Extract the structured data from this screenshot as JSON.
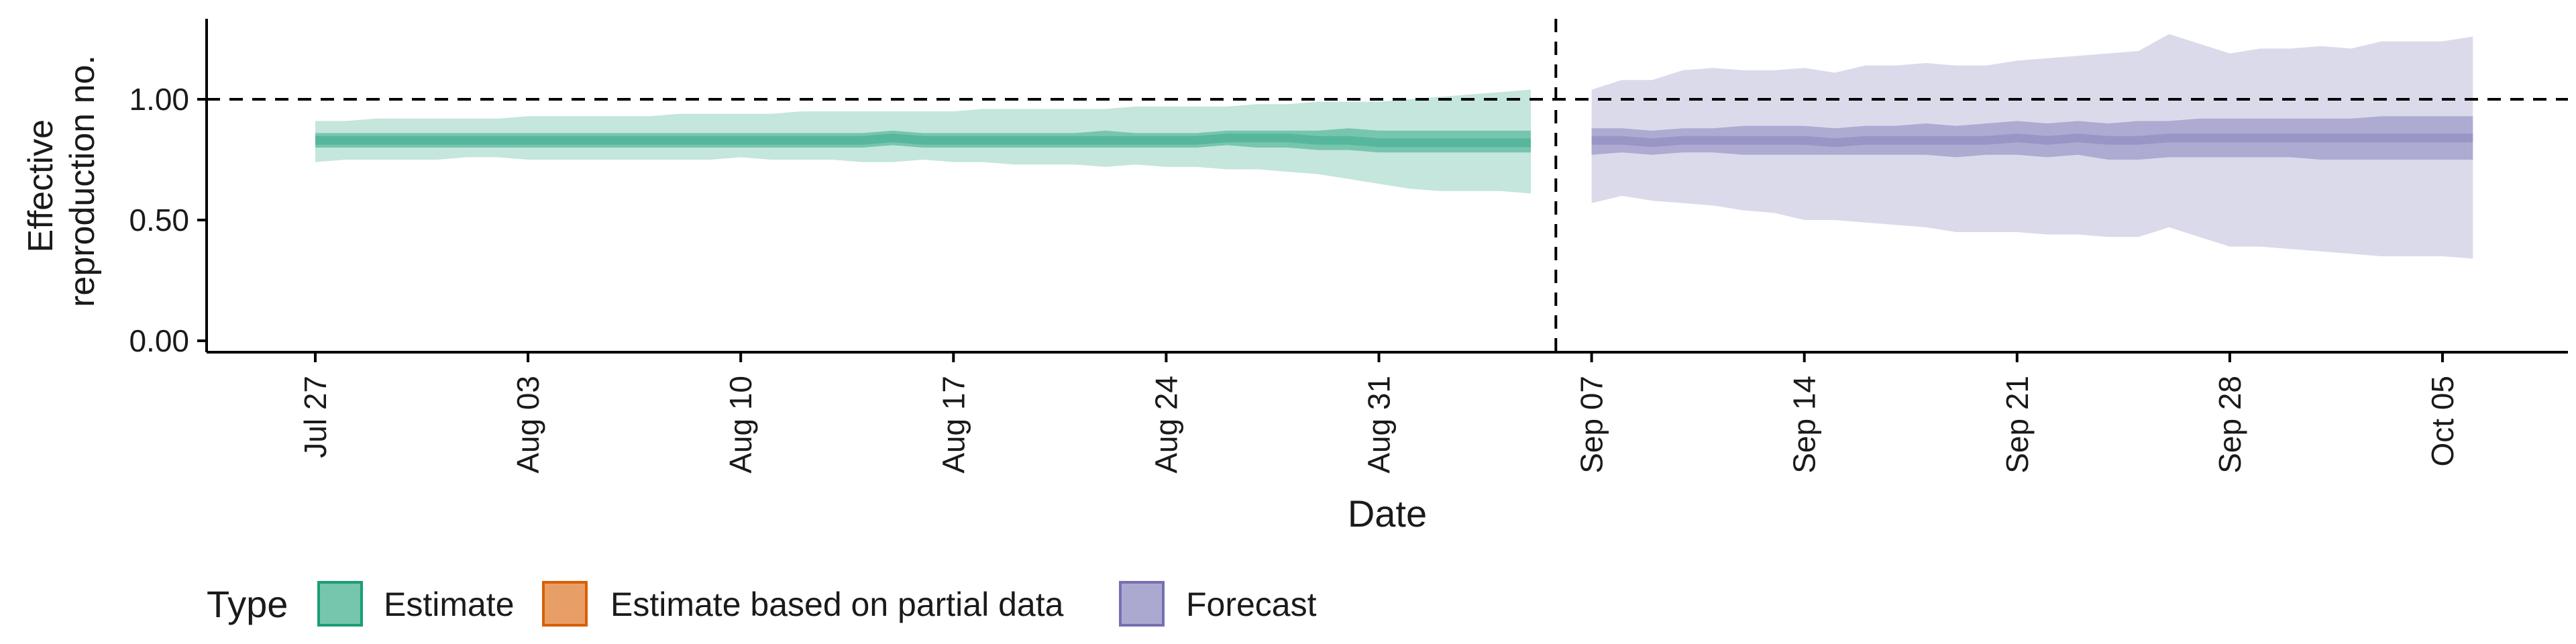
{
  "chart_data": {
    "type": "area",
    "xlabel": "Date",
    "ylabel_lines": [
      "Effective",
      "reproduction no."
    ],
    "ylim": [
      0,
      1.3
    ],
    "y_ticks": [
      0,
      0.5,
      1,
      1.5
    ],
    "y_tick_labels": [
      "0.00",
      "0.50",
      "1.00",
      ""
    ],
    "x_tick_labels": [
      "Jul 27",
      "Aug 03",
      "Aug 10",
      "Aug 17",
      "Aug 24",
      "Aug 31",
      "Sep 07",
      "Sep 14",
      "Sep 21",
      "Sep 28",
      "Oct 05"
    ],
    "reference_line_y": 1.0,
    "forecast_start_divider": "Sep 06",
    "grid": false,
    "legend": {
      "title": "Type",
      "placement": "bottom-left",
      "entries": [
        {
          "label": "Estimate",
          "color": "#1b9e77"
        },
        {
          "label": "Estimate based on partial data",
          "color": "#d95f02"
        },
        {
          "label": "Forecast",
          "color": "#7570b3"
        }
      ]
    },
    "series": [
      {
        "name": "Estimate",
        "color": "#1b9e77",
        "dates": [
          "Jul 27",
          "Jul 28",
          "Jul 29",
          "Jul 30",
          "Jul 31",
          "Aug 01",
          "Aug 02",
          "Aug 03",
          "Aug 04",
          "Aug 05",
          "Aug 06",
          "Aug 07",
          "Aug 08",
          "Aug 09",
          "Aug 10",
          "Aug 11",
          "Aug 12",
          "Aug 13",
          "Aug 14",
          "Aug 15",
          "Aug 16",
          "Aug 17",
          "Aug 18",
          "Aug 19",
          "Aug 20",
          "Aug 21",
          "Aug 22",
          "Aug 23",
          "Aug 24",
          "Aug 25",
          "Aug 26",
          "Aug 27",
          "Aug 28",
          "Aug 29",
          "Aug 30",
          "Aug 31",
          "Sep 01",
          "Sep 02",
          "Sep 03",
          "Sep 04",
          "Sep 05"
        ],
        "upper_90": [
          0.91,
          0.91,
          0.92,
          0.92,
          0.92,
          0.92,
          0.92,
          0.93,
          0.93,
          0.93,
          0.93,
          0.93,
          0.94,
          0.94,
          0.94,
          0.94,
          0.95,
          0.95,
          0.95,
          0.95,
          0.95,
          0.95,
          0.96,
          0.96,
          0.96,
          0.96,
          0.96,
          0.97,
          0.97,
          0.97,
          0.97,
          0.98,
          0.98,
          0.99,
          0.99,
          0.99,
          1.0,
          1.01,
          1.02,
          1.03,
          1.04
        ],
        "upper_50": [
          0.86,
          0.86,
          0.86,
          0.86,
          0.86,
          0.86,
          0.86,
          0.86,
          0.86,
          0.86,
          0.86,
          0.86,
          0.86,
          0.86,
          0.86,
          0.86,
          0.86,
          0.86,
          0.86,
          0.87,
          0.86,
          0.86,
          0.86,
          0.86,
          0.86,
          0.86,
          0.87,
          0.86,
          0.86,
          0.86,
          0.87,
          0.87,
          0.87,
          0.87,
          0.88,
          0.87,
          0.87,
          0.87,
          0.87,
          0.87,
          0.87
        ],
        "median": [
          0.83,
          0.83,
          0.83,
          0.83,
          0.83,
          0.83,
          0.83,
          0.83,
          0.83,
          0.83,
          0.83,
          0.83,
          0.83,
          0.83,
          0.83,
          0.83,
          0.83,
          0.83,
          0.83,
          0.84,
          0.83,
          0.83,
          0.83,
          0.83,
          0.83,
          0.83,
          0.83,
          0.83,
          0.83,
          0.83,
          0.84,
          0.84,
          0.84,
          0.83,
          0.83,
          0.82,
          0.82,
          0.82,
          0.82,
          0.82,
          0.82
        ],
        "lower_50": [
          0.8,
          0.8,
          0.8,
          0.8,
          0.8,
          0.8,
          0.8,
          0.8,
          0.8,
          0.8,
          0.8,
          0.8,
          0.8,
          0.8,
          0.8,
          0.8,
          0.8,
          0.8,
          0.8,
          0.81,
          0.8,
          0.8,
          0.8,
          0.8,
          0.8,
          0.8,
          0.8,
          0.8,
          0.8,
          0.8,
          0.81,
          0.8,
          0.8,
          0.79,
          0.79,
          0.78,
          0.78,
          0.78,
          0.78,
          0.78,
          0.78
        ],
        "lower_90": [
          0.74,
          0.75,
          0.75,
          0.75,
          0.75,
          0.76,
          0.76,
          0.75,
          0.75,
          0.75,
          0.75,
          0.75,
          0.75,
          0.75,
          0.76,
          0.75,
          0.75,
          0.75,
          0.74,
          0.74,
          0.75,
          0.74,
          0.74,
          0.73,
          0.73,
          0.73,
          0.72,
          0.73,
          0.72,
          0.72,
          0.71,
          0.71,
          0.7,
          0.69,
          0.67,
          0.65,
          0.63,
          0.62,
          0.62,
          0.62,
          0.61
        ]
      },
      {
        "name": "Forecast",
        "color": "#7570b3",
        "dates": [
          "Sep 07",
          "Sep 08",
          "Sep 09",
          "Sep 10",
          "Sep 11",
          "Sep 12",
          "Sep 13",
          "Sep 14",
          "Sep 15",
          "Sep 16",
          "Sep 17",
          "Sep 18",
          "Sep 19",
          "Sep 20",
          "Sep 21",
          "Sep 22",
          "Sep 23",
          "Sep 24",
          "Sep 25",
          "Sep 26",
          "Sep 27",
          "Sep 28",
          "Sep 29",
          "Sep 30",
          "Oct 01",
          "Oct 02",
          "Oct 03",
          "Oct 04",
          "Oct 05",
          "Oct 06"
        ],
        "upper_90": [
          1.04,
          1.08,
          1.08,
          1.12,
          1.13,
          1.12,
          1.12,
          1.13,
          1.11,
          1.14,
          1.14,
          1.15,
          1.14,
          1.14,
          1.16,
          1.17,
          1.18,
          1.19,
          1.2,
          1.27,
          1.23,
          1.19,
          1.21,
          1.21,
          1.22,
          1.21,
          1.24,
          1.24,
          1.24,
          1.26
        ],
        "upper_50": [
          0.88,
          0.88,
          0.87,
          0.88,
          0.88,
          0.89,
          0.89,
          0.89,
          0.88,
          0.89,
          0.89,
          0.9,
          0.89,
          0.9,
          0.91,
          0.9,
          0.91,
          0.9,
          0.91,
          0.91,
          0.92,
          0.92,
          0.92,
          0.92,
          0.92,
          0.92,
          0.93,
          0.93,
          0.93,
          0.93
        ],
        "median": [
          0.83,
          0.83,
          0.82,
          0.83,
          0.83,
          0.83,
          0.83,
          0.83,
          0.82,
          0.83,
          0.83,
          0.83,
          0.83,
          0.83,
          0.84,
          0.83,
          0.84,
          0.83,
          0.83,
          0.84,
          0.84,
          0.84,
          0.84,
          0.84,
          0.84,
          0.84,
          0.84,
          0.84,
          0.84,
          0.84
        ],
        "lower_50": [
          0.77,
          0.78,
          0.77,
          0.78,
          0.78,
          0.77,
          0.77,
          0.77,
          0.77,
          0.77,
          0.77,
          0.77,
          0.76,
          0.77,
          0.77,
          0.76,
          0.77,
          0.75,
          0.75,
          0.76,
          0.76,
          0.76,
          0.76,
          0.76,
          0.75,
          0.75,
          0.75,
          0.75,
          0.75,
          0.75
        ],
        "lower_90": [
          0.57,
          0.6,
          0.58,
          0.57,
          0.56,
          0.54,
          0.53,
          0.5,
          0.5,
          0.49,
          0.48,
          0.47,
          0.45,
          0.45,
          0.45,
          0.44,
          0.44,
          0.43,
          0.43,
          0.47,
          0.43,
          0.39,
          0.39,
          0.38,
          0.37,
          0.36,
          0.35,
          0.35,
          0.35,
          0.34
        ]
      }
    ]
  }
}
